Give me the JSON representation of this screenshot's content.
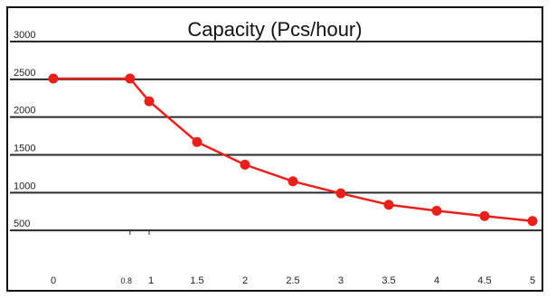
{
  "chart_data": {
    "type": "line",
    "title": "Capacity (Pcs/hour)",
    "xlabel": "",
    "ylabel": "",
    "x_ticks": [
      "0",
      "0.8",
      "1",
      "1.5",
      "2",
      "2.5",
      "3",
      "3.5",
      "4",
      "4.5",
      "5"
    ],
    "x_tick_values": [
      0,
      0.8,
      1,
      1.5,
      2,
      2.5,
      3,
      3.5,
      4,
      4.5,
      5
    ],
    "y_ticks": [
      "3000",
      "2500",
      "2000",
      "1500",
      "1000",
      "500"
    ],
    "y_tick_values": [
      3000,
      2500,
      2000,
      1500,
      1000,
      500
    ],
    "xlim": [
      0,
      5
    ],
    "ylim": [
      0,
      3000
    ],
    "grid": true,
    "series": [
      {
        "color": "#e8201c",
        "x": [
          0,
          0.8,
          1,
          1.5,
          2,
          2.5,
          3,
          3.5,
          4,
          4.5,
          5
        ],
        "y": [
          2510,
          2510,
          2210,
          1670,
          1370,
          1150,
          990,
          840,
          760,
          690,
          625
        ]
      }
    ]
  }
}
